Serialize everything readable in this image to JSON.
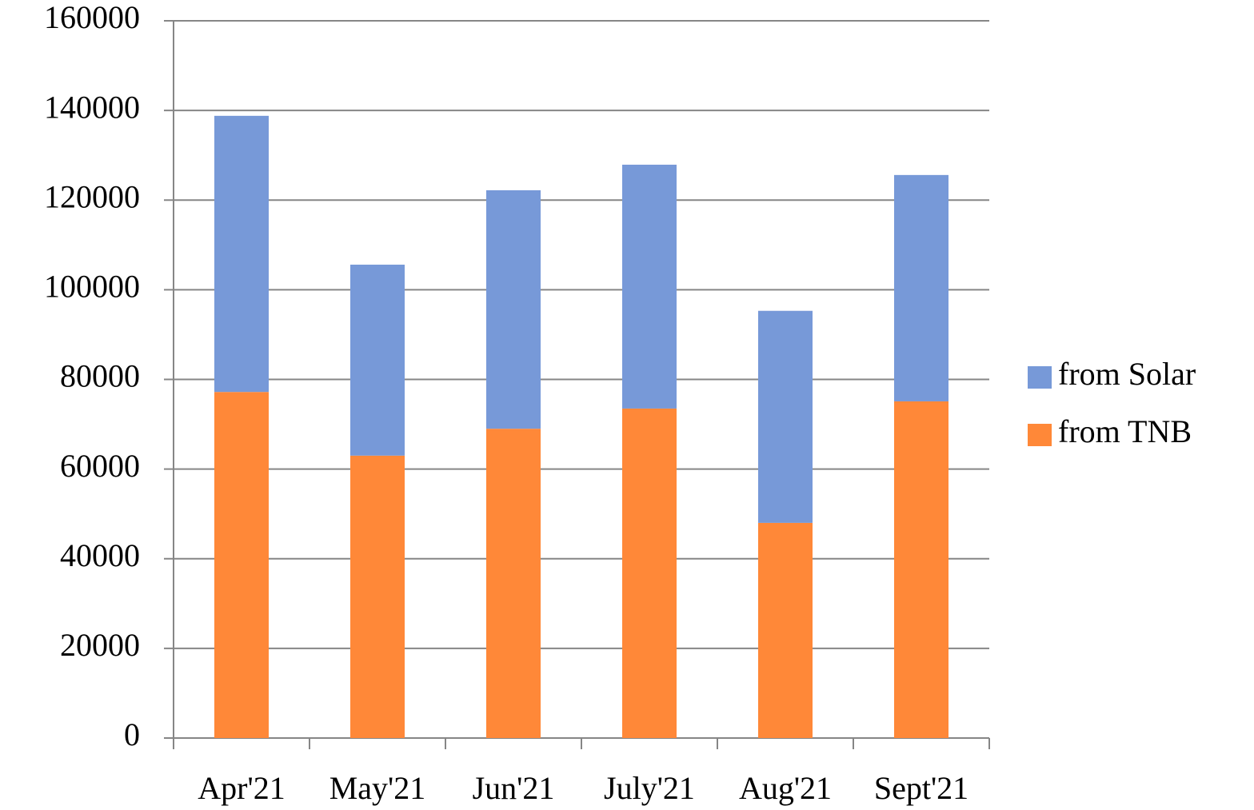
{
  "chart_data": {
    "type": "stacked_bar",
    "categories": [
      "Apr'21",
      "May'21",
      "Jun'21",
      "July'21",
      "Aug'21",
      "Sept'21"
    ],
    "series": [
      {
        "name": "from TNB",
        "color": "#ff8838",
        "values": [
          77200,
          63000,
          69000,
          73500,
          48000,
          75100
        ]
      },
      {
        "name": "from Solar",
        "color": "#7799d8",
        "values": [
          61600,
          42600,
          53200,
          54400,
          47300,
          50500
        ]
      }
    ],
    "ylim": [
      0,
      160000
    ],
    "yticks": [
      0,
      20000,
      40000,
      60000,
      80000,
      100000,
      120000,
      140000,
      160000
    ],
    "grid": true,
    "legend": "right"
  }
}
